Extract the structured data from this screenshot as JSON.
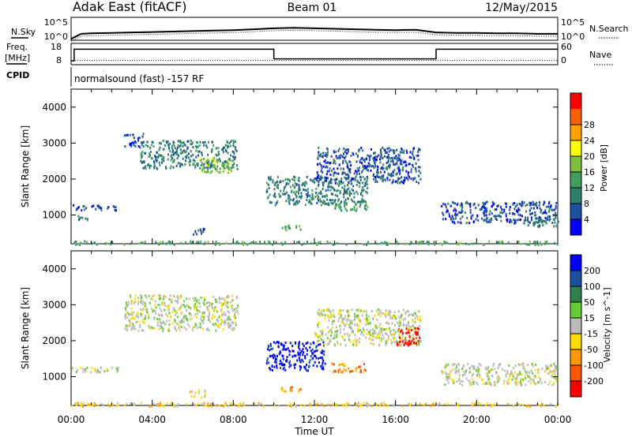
{
  "header": {
    "station": "Adak East (fitACF)",
    "beam": "Beam 01",
    "date": "12/May/2015"
  },
  "labels": {
    "nsky": "N.Sky",
    "freq": "Freq.",
    "mhz": "[MHz]",
    "cpid": "CPID",
    "nsearch": "N.Search",
    "nave": "Nave",
    "cpid_text": "normalsound (fast) -157 RF"
  },
  "colors": {
    "power": [
      "#0000ff",
      "#1f4f9f",
      "#2f7f6f",
      "#3f9f5f",
      "#7fbf3f",
      "#ffff00",
      "#ff9f00",
      "#ff5f00",
      "#ff0000"
    ],
    "velocity": [
      "#0000ff",
      "#1f4f9f",
      "#2f7f4f",
      "#66cc33",
      "#bbbbbb",
      "#ffdd00",
      "#ff9900",
      "#ff5500",
      "#ff0000"
    ]
  },
  "chart_data": [
    {
      "type": "line",
      "name": "sky-noise",
      "y_tick_labels": [
        "10^5",
        "10^0"
      ],
      "right_tick_labels": [
        "10^5",
        "10^0"
      ],
      "x_hours": [
        0,
        0.5,
        1,
        2,
        3,
        4,
        5,
        6,
        7,
        8,
        9,
        10,
        11,
        12,
        13,
        14,
        15,
        16,
        17,
        18,
        19,
        20,
        21,
        22,
        23,
        24
      ],
      "values_log10": [
        0.3,
        1.4,
        1.5,
        1.6,
        1.7,
        1.8,
        1.9,
        2.0,
        2.1,
        2.2,
        2.4,
        2.6,
        2.7,
        2.6,
        2.5,
        2.4,
        2.3,
        2.2,
        2.3,
        1.7,
        1.6,
        1.6,
        1.5,
        1.5,
        1.4,
        1.4
      ],
      "ylim_log10": [
        0,
        5
      ]
    },
    {
      "type": "line",
      "name": "frequency-nave",
      "y_ticks": [
        8,
        18
      ],
      "right_ticks": [
        0,
        60
      ],
      "freq_steps": [
        {
          "x0": 0,
          "x1": 0.15,
          "y": 9
        },
        {
          "x0": 0.15,
          "x1": 10,
          "y": 15
        },
        {
          "x0": 10,
          "x1": 18,
          "y": 10
        },
        {
          "x0": 18,
          "x1": 24,
          "y": 15
        }
      ],
      "nave_level": 12,
      "ylim": [
        7,
        18
      ]
    },
    {
      "type": "heatmap",
      "name": "power",
      "ylabel": "Slant Range [km]",
      "y_ticks": [
        1000,
        2000,
        3000,
        4000
      ],
      "ylim": [
        200,
        4500
      ],
      "xlim_hours": [
        0,
        24
      ],
      "colorbar_label": "Power [dB]",
      "colorbar_ticks": [
        "4",
        "8",
        "12",
        "16",
        "20",
        "24",
        "28"
      ],
      "echo_regions": [
        {
          "t0": 0.0,
          "t1": 2.3,
          "r0": 1150,
          "r1": 1300,
          "level": 1
        },
        {
          "t0": 0.3,
          "t1": 0.9,
          "r0": 850,
          "r1": 1000,
          "level": 2
        },
        {
          "t0": 2.6,
          "t1": 3.6,
          "r0": 2900,
          "r1": 3300,
          "level": 1
        },
        {
          "t0": 3.4,
          "t1": 8.2,
          "r0": 2300,
          "r1": 3100,
          "level": 2
        },
        {
          "t0": 6.3,
          "t1": 8.0,
          "r0": 2200,
          "r1": 2600,
          "level": 4
        },
        {
          "t0": 5.8,
          "t1": 6.6,
          "r0": 450,
          "r1": 650,
          "level": 1
        },
        {
          "t0": 9.6,
          "t1": 14.6,
          "r0": 1300,
          "r1": 2100,
          "level": 2
        },
        {
          "t0": 10.3,
          "t1": 11.3,
          "r0": 600,
          "r1": 750,
          "level": 3
        },
        {
          "t0": 12.8,
          "t1": 14.6,
          "r0": 1150,
          "r1": 1400,
          "level": 3
        },
        {
          "t0": 12.0,
          "t1": 17.2,
          "r0": 1900,
          "r1": 2900,
          "level": 1
        },
        {
          "t0": 18.2,
          "t1": 24.0,
          "r0": 800,
          "r1": 1400,
          "level": 1
        },
        {
          "t0": 22.5,
          "t1": 24.0,
          "r0": 700,
          "r1": 950,
          "level": 2
        },
        {
          "t0": 0.0,
          "t1": 24.0,
          "r0": 200,
          "r1": 300,
          "level": 3
        }
      ]
    },
    {
      "type": "heatmap",
      "name": "velocity",
      "ylabel": "Slant Range [km]",
      "xlabel": "Time UT",
      "x_ticks": [
        "00:00",
        "04:00",
        "08:00",
        "12:00",
        "16:00",
        "20:00",
        "00:00"
      ],
      "y_ticks": [
        1000,
        2000,
        3000,
        4000
      ],
      "ylim": [
        200,
        4500
      ],
      "xlim_hours": [
        0,
        24
      ],
      "colorbar_label": "Velocity [m s^-1]",
      "colorbar_ticks": [
        "200",
        "100",
        "50",
        "15",
        "-15",
        "-50",
        "-100",
        "-200"
      ],
      "echo_regions": [
        {
          "t0": 0.0,
          "t1": 2.3,
          "r0": 1150,
          "r1": 1300,
          "level": 4
        },
        {
          "t0": 2.6,
          "t1": 8.2,
          "r0": 2300,
          "r1": 3300,
          "level": 4
        },
        {
          "t0": 5.8,
          "t1": 6.6,
          "r0": 450,
          "r1": 650,
          "level": 5
        },
        {
          "t0": 9.6,
          "t1": 12.5,
          "r0": 1200,
          "r1": 2000,
          "level": 0
        },
        {
          "t0": 10.3,
          "t1": 11.3,
          "r0": 600,
          "r1": 750,
          "level": 6
        },
        {
          "t0": 12.8,
          "t1": 14.6,
          "r0": 1150,
          "r1": 1400,
          "level": 6
        },
        {
          "t0": 12.0,
          "t1": 17.2,
          "r0": 1900,
          "r1": 2900,
          "level": 4
        },
        {
          "t0": 16.0,
          "t1": 17.2,
          "r0": 1900,
          "r1": 2400,
          "level": 8
        },
        {
          "t0": 18.2,
          "t1": 24.0,
          "r0": 800,
          "r1": 1400,
          "level": 4
        },
        {
          "t0": 0.0,
          "t1": 24.0,
          "r0": 200,
          "r1": 300,
          "level": 5
        }
      ]
    }
  ]
}
